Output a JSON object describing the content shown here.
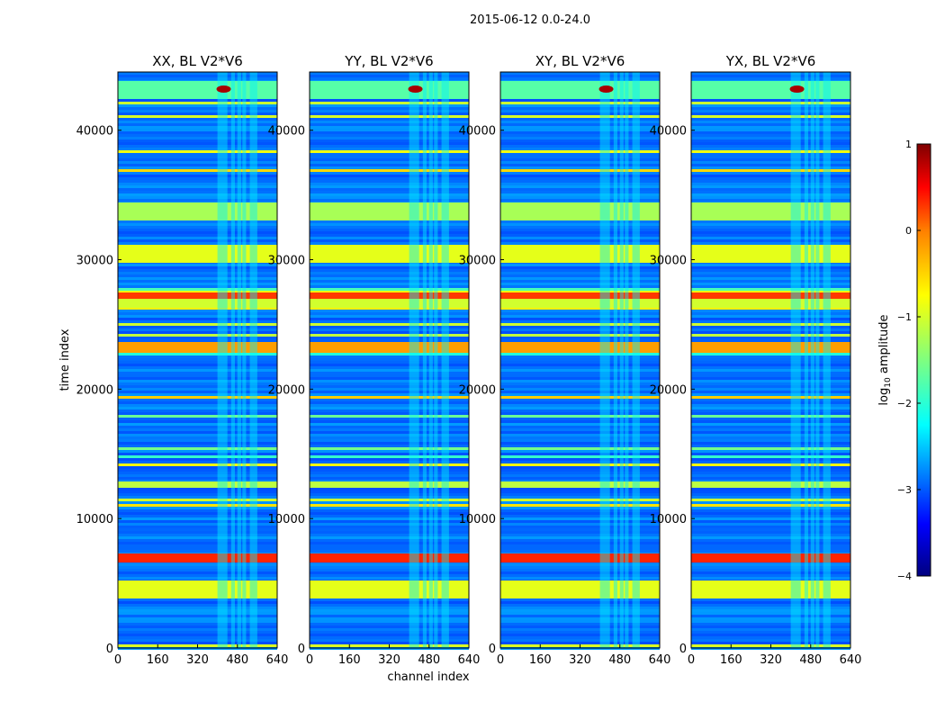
{
  "figure": {
    "suptitle": "2015-06-12 0.0-24.0",
    "xlabel": "channel index",
    "ylabel": "time index",
    "colorbar_label": "log",
    "colorbar_label_sub": "10",
    "colorbar_label_rest": " amplitude",
    "colormap": [
      "#00007f",
      "#0000ff",
      "#007fff",
      "#00ffff",
      "#7fff7f",
      "#ffff00",
      "#ff7f00",
      "#ff0000",
      "#7f0000"
    ]
  },
  "chart_data": [
    {
      "type": "heatmap",
      "title": "XX, BL V2*V6",
      "xlim": [
        0,
        640
      ],
      "ylim": [
        0,
        44500
      ],
      "xticks": [
        0,
        160,
        320,
        480,
        640
      ],
      "yticks": [
        0,
        10000,
        20000,
        30000,
        40000
      ],
      "clim": [
        -4,
        1
      ],
      "colorbar_ticks": [
        1,
        0,
        -1,
        -2,
        -3,
        -4
      ]
    },
    {
      "type": "heatmap",
      "title": "YY, BL V2*V6",
      "xlim": [
        0,
        640
      ],
      "ylim": [
        0,
        44500
      ],
      "xticks": [
        0,
        160,
        320,
        480,
        640
      ],
      "yticks": [
        0,
        10000,
        20000,
        30000,
        40000
      ],
      "clim": [
        -4,
        1
      ],
      "colorbar_ticks": [
        1,
        0,
        -1,
        -2,
        -3,
        -4
      ]
    },
    {
      "type": "heatmap",
      "title": "XY, BL V2*V6",
      "xlim": [
        0,
        640
      ],
      "ylim": [
        0,
        44500
      ],
      "xticks": [
        0,
        160,
        320,
        480,
        640
      ],
      "yticks": [
        0,
        10000,
        20000,
        30000,
        40000
      ],
      "clim": [
        -4,
        1
      ],
      "colorbar_ticks": [
        1,
        0,
        -1,
        -2,
        -3,
        -4
      ]
    },
    {
      "type": "heatmap",
      "title": "YX, BL V2*V6",
      "xlim": [
        0,
        640
      ],
      "ylim": [
        0,
        44500
      ],
      "xticks": [
        0,
        160,
        320,
        480,
        640
      ],
      "yticks": [
        0,
        10000,
        20000,
        30000,
        40000
      ],
      "clim": [
        -4,
        1
      ],
      "colorbar_ticks": [
        1,
        0,
        -1,
        -2,
        -3,
        -4
      ]
    }
  ]
}
